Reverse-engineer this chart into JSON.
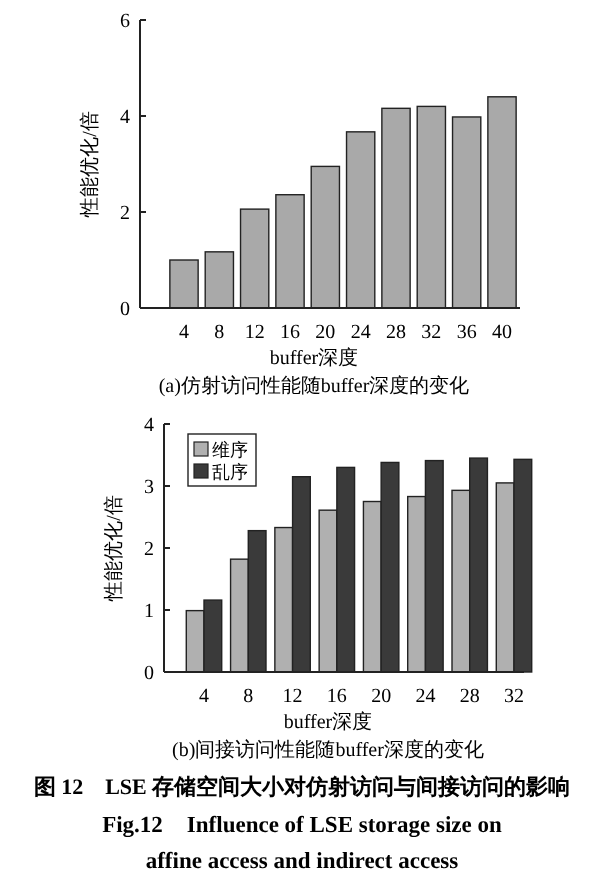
{
  "chart_data": [
    {
      "type": "bar",
      "title": "(a)仿射访问性能随buffer深度的变化",
      "xlabel": "buffer深度",
      "ylabel": "性能优化/倍",
      "categories": [
        "4",
        "8",
        "12",
        "16",
        "20",
        "24",
        "28",
        "32",
        "36",
        "40"
      ],
      "values": [
        1.0,
        1.17,
        2.06,
        2.36,
        2.95,
        3.67,
        4.16,
        4.2,
        3.98,
        4.4
      ],
      "color": "#a9a9a9",
      "ylim": [
        0,
        6
      ],
      "yticks": [
        0,
        2,
        4,
        6
      ],
      "legend": false,
      "grid": false
    },
    {
      "type": "bar",
      "title": "(b)间接访问性能随buffer深度的变化",
      "xlabel": "buffer深度",
      "ylabel": "性能优化/倍",
      "categories": [
        "4",
        "8",
        "12",
        "16",
        "20",
        "24",
        "28",
        "32"
      ],
      "series": [
        {
          "name": "维序",
          "color": "#b0b0b0",
          "values": [
            0.99,
            1.82,
            2.33,
            2.61,
            2.75,
            2.83,
            2.93,
            3.05
          ]
        },
        {
          "name": "乱序",
          "color": "#3a3a3a",
          "values": [
            1.16,
            2.28,
            3.15,
            3.3,
            3.38,
            3.41,
            3.45,
            3.43
          ]
        }
      ],
      "ylim": [
        0,
        4
      ],
      "yticks": [
        0,
        1,
        2,
        3,
        4
      ],
      "legend": "top left",
      "grid": false,
      "annotations": [
        "图 12　LSE 存储空间大小对仿射访问与间接访问的影响",
        "Fig.12　Influence of LSE storage size on",
        "affine access and indirect access"
      ]
    }
  ]
}
